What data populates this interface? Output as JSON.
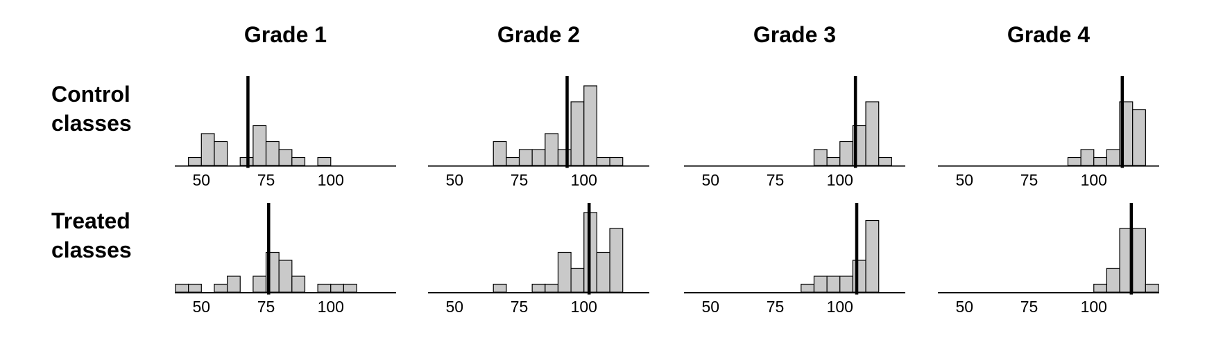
{
  "figure": {
    "row_labels": [
      "Control\nclasses",
      "Treated\nclasses"
    ],
    "column_titles": [
      "Grade 1",
      "Grade 2",
      "Grade 3",
      "Grade 4"
    ]
  },
  "chart_data": {
    "type": "bar",
    "subtype": "histogram_small_multiples",
    "title": "",
    "xlabel": "",
    "ylabel": "",
    "grid": false,
    "legend": "none",
    "rows": [
      "Control classes",
      "Treated classes"
    ],
    "columns": [
      "Grade 1",
      "Grade 2",
      "Grade 3",
      "Grade 4"
    ],
    "x_domain": [
      40,
      125
    ],
    "x_ticks": [
      50,
      75,
      100
    ],
    "bin_width": 5,
    "y_max_count": 11,
    "bar_fill": "#c9c9c9",
    "bar_stroke": "#000000",
    "axis_color": "#000000",
    "mean_line_color": "#000000",
    "panels": [
      {
        "row": "Control classes",
        "column": "Grade 1",
        "vline": 68,
        "bins": [
          [
            45,
            1
          ],
          [
            50,
            4
          ],
          [
            55,
            3
          ],
          [
            65,
            1
          ],
          [
            70,
            5
          ],
          [
            75,
            3
          ],
          [
            80,
            2
          ],
          [
            85,
            1
          ],
          [
            95,
            1
          ]
        ]
      },
      {
        "row": "Control classes",
        "column": "Grade 2",
        "vline": 93.5,
        "bins": [
          [
            65,
            3
          ],
          [
            70,
            1
          ],
          [
            75,
            2
          ],
          [
            80,
            2
          ],
          [
            85,
            4
          ],
          [
            90,
            2
          ],
          [
            95,
            8
          ],
          [
            100,
            10
          ],
          [
            105,
            1
          ],
          [
            110,
            1
          ]
        ]
      },
      {
        "row": "Control classes",
        "column": "Grade 3",
        "vline": 106,
        "bins": [
          [
            90,
            2
          ],
          [
            95,
            1
          ],
          [
            100,
            3
          ],
          [
            105,
            5
          ],
          [
            110,
            8
          ],
          [
            115,
            1
          ]
        ]
      },
      {
        "row": "Control classes",
        "column": "Grade 4",
        "vline": 111,
        "bins": [
          [
            90,
            1
          ],
          [
            95,
            2
          ],
          [
            100,
            1
          ],
          [
            105,
            2
          ],
          [
            110,
            8
          ],
          [
            115,
            7
          ]
        ]
      },
      {
        "row": "Treated classes",
        "column": "Grade 1",
        "vline": 76,
        "bins": [
          [
            40,
            1
          ],
          [
            45,
            1
          ],
          [
            55,
            1
          ],
          [
            60,
            2
          ],
          [
            70,
            2
          ],
          [
            75,
            5
          ],
          [
            80,
            4
          ],
          [
            85,
            2
          ],
          [
            95,
            1
          ],
          [
            100,
            1
          ],
          [
            105,
            1
          ]
        ]
      },
      {
        "row": "Treated classes",
        "column": "Grade 2",
        "vline": 102,
        "bins": [
          [
            65,
            1
          ],
          [
            80,
            1
          ],
          [
            85,
            1
          ],
          [
            90,
            5
          ],
          [
            95,
            3
          ],
          [
            100,
            10
          ],
          [
            105,
            5
          ],
          [
            110,
            8
          ]
        ]
      },
      {
        "row": "Treated classes",
        "column": "Grade 3",
        "vline": 106.5,
        "bins": [
          [
            85,
            1
          ],
          [
            90,
            2
          ],
          [
            95,
            2
          ],
          [
            100,
            2
          ],
          [
            105,
            4
          ],
          [
            110,
            9
          ]
        ]
      },
      {
        "row": "Treated classes",
        "column": "Grade 4",
        "vline": 114.5,
        "bins": [
          [
            100,
            1
          ],
          [
            105,
            3
          ],
          [
            110,
            8
          ],
          [
            115,
            8
          ],
          [
            120,
            1
          ]
        ]
      }
    ]
  }
}
